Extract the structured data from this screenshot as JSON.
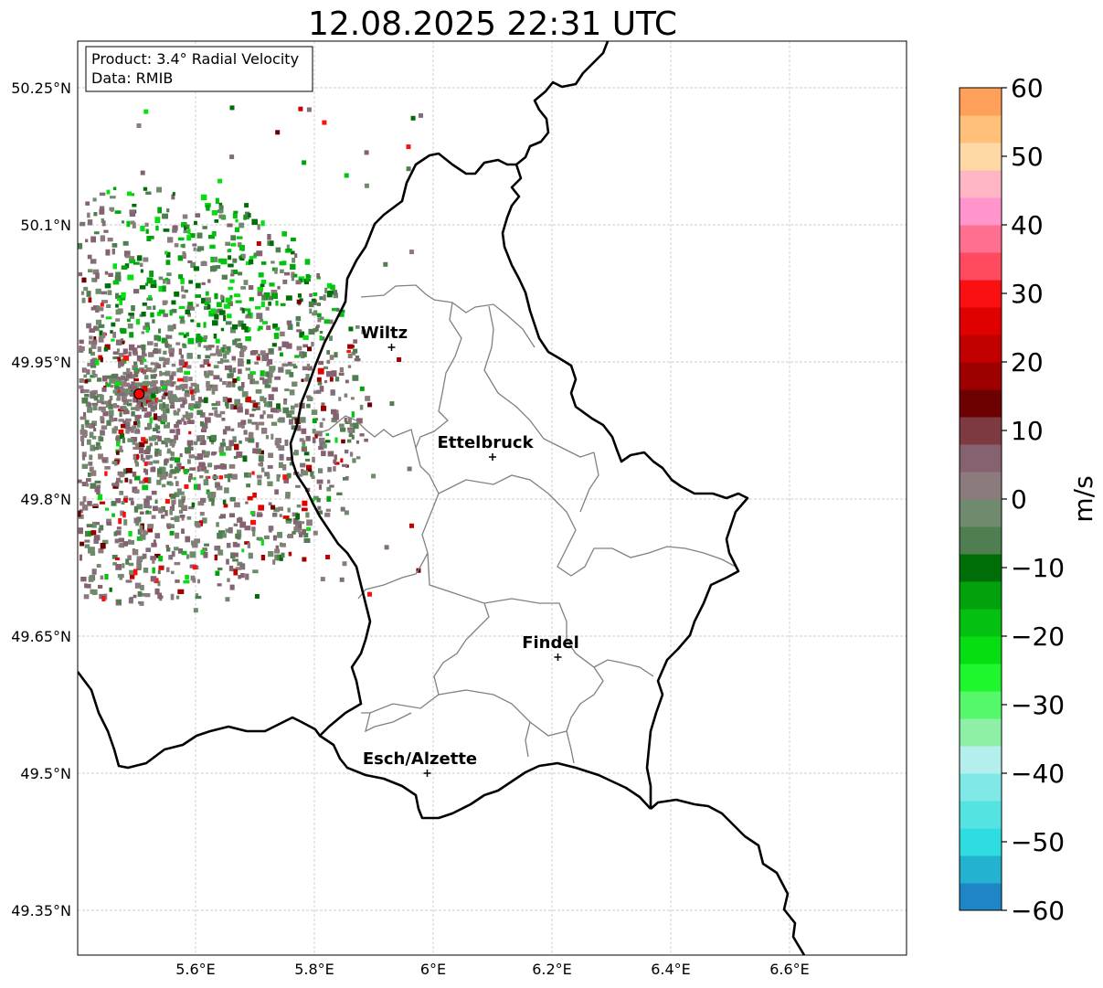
{
  "title": "12.08.2025 22:31 UTC",
  "info_box": {
    "product": "Product: 3.4° Radial Velocity",
    "source": "Data: RMIB"
  },
  "axes": {
    "lat_ticks": [
      "50.25°N",
      "50.1°N",
      "49.95°N",
      "49.8°N",
      "49.65°N",
      "49.5°N",
      "49.35°N"
    ],
    "lon_ticks": [
      "5.6°E",
      "5.8°E",
      "6°E",
      "6.2°E",
      "6.4°E",
      "6.6°E"
    ],
    "lat_values": [
      50.25,
      50.1,
      49.95,
      49.8,
      49.65,
      49.5,
      49.35
    ],
    "lon_values": [
      5.6,
      5.8,
      6.0,
      6.2,
      6.4,
      6.6
    ],
    "lat_range": [
      49.3,
      50.3
    ],
    "lon_range": [
      5.4,
      6.8
    ],
    "grid": true
  },
  "cities": [
    {
      "name": "Wiltz",
      "lon": 5.93,
      "lat": 49.966
    },
    {
      "name": "Ettelbruck",
      "lon": 6.1,
      "lat": 49.846
    },
    {
      "name": "Findel",
      "lon": 6.21,
      "lat": 49.627
    },
    {
      "name": "Esch/Alzette",
      "lon": 5.99,
      "lat": 49.5
    }
  ],
  "radar_site": {
    "lon": 5.505,
    "lat": 49.915
  },
  "colorbar": {
    "label": "m/s",
    "min": -60,
    "max": 60,
    "ticks": [
      {
        "value": 60,
        "text": "60"
      },
      {
        "value": 50,
        "text": "50"
      },
      {
        "value": 40,
        "text": "40"
      },
      {
        "value": 30,
        "text": "30"
      },
      {
        "value": 20,
        "text": "20"
      },
      {
        "value": 10,
        "text": "10"
      },
      {
        "value": 0,
        "text": "0"
      },
      {
        "value": -10,
        "text": "−10"
      },
      {
        "value": -20,
        "text": "−20"
      },
      {
        "value": -30,
        "text": "−30"
      },
      {
        "value": -40,
        "text": "−40"
      },
      {
        "value": -50,
        "text": "−50"
      },
      {
        "value": -60,
        "text": "−60"
      }
    ],
    "stops": [
      {
        "from": -60,
        "to": -56,
        "color": "#1f86c6"
      },
      {
        "from": -56,
        "to": -52,
        "color": "#23b2d0"
      },
      {
        "from": -52,
        "to": -48,
        "color": "#2fdde0"
      },
      {
        "from": -48,
        "to": -44,
        "color": "#55e3e2"
      },
      {
        "from": -44,
        "to": -40,
        "color": "#80e8e6"
      },
      {
        "from": -40,
        "to": -36,
        "color": "#b4efee"
      },
      {
        "from": -36,
        "to": -32,
        "color": "#8ef0a6"
      },
      {
        "from": -32,
        "to": -28,
        "color": "#55f86a"
      },
      {
        "from": -28,
        "to": -24,
        "color": "#1ef62e"
      },
      {
        "from": -24,
        "to": -20,
        "color": "#06de12"
      },
      {
        "from": -20,
        "to": -16,
        "color": "#04c010"
      },
      {
        "from": -16,
        "to": -12,
        "color": "#02a20c"
      },
      {
        "from": -12,
        "to": -8,
        "color": "#006e06"
      },
      {
        "from": -8,
        "to": -4,
        "color": "#4f7f50"
      },
      {
        "from": -4,
        "to": 0,
        "color": "#6f8a6c"
      },
      {
        "from": 0,
        "to": 4,
        "color": "#8c7b7d"
      },
      {
        "from": 4,
        "to": 8,
        "color": "#866271"
      },
      {
        "from": 8,
        "to": 12,
        "color": "#7d3a40"
      },
      {
        "from": 12,
        "to": 16,
        "color": "#6d0000"
      },
      {
        "from": 16,
        "to": 20,
        "color": "#9e0000"
      },
      {
        "from": 20,
        "to": 24,
        "color": "#c20000"
      },
      {
        "from": 24,
        "to": 28,
        "color": "#e00000"
      },
      {
        "from": 28,
        "to": 32,
        "color": "#fa1010"
      },
      {
        "from": 32,
        "to": 36,
        "color": "#ff4a60"
      },
      {
        "from": 36,
        "to": 40,
        "color": "#ff6f90"
      },
      {
        "from": 40,
        "to": 44,
        "color": "#ff95cc"
      },
      {
        "from": 44,
        "to": 48,
        "color": "#ffb5c3"
      },
      {
        "from": 48,
        "to": 52,
        "color": "#ffd9a5"
      },
      {
        "from": 52,
        "to": 56,
        "color": "#ffc07a"
      },
      {
        "from": 56,
        "to": 60,
        "color": "#ffa05a"
      }
    ]
  },
  "colors": {
    "border": "#000000",
    "canton_lines": "#808080",
    "grid": "#bfbfbf",
    "radar_marker": "#ff0000"
  }
}
